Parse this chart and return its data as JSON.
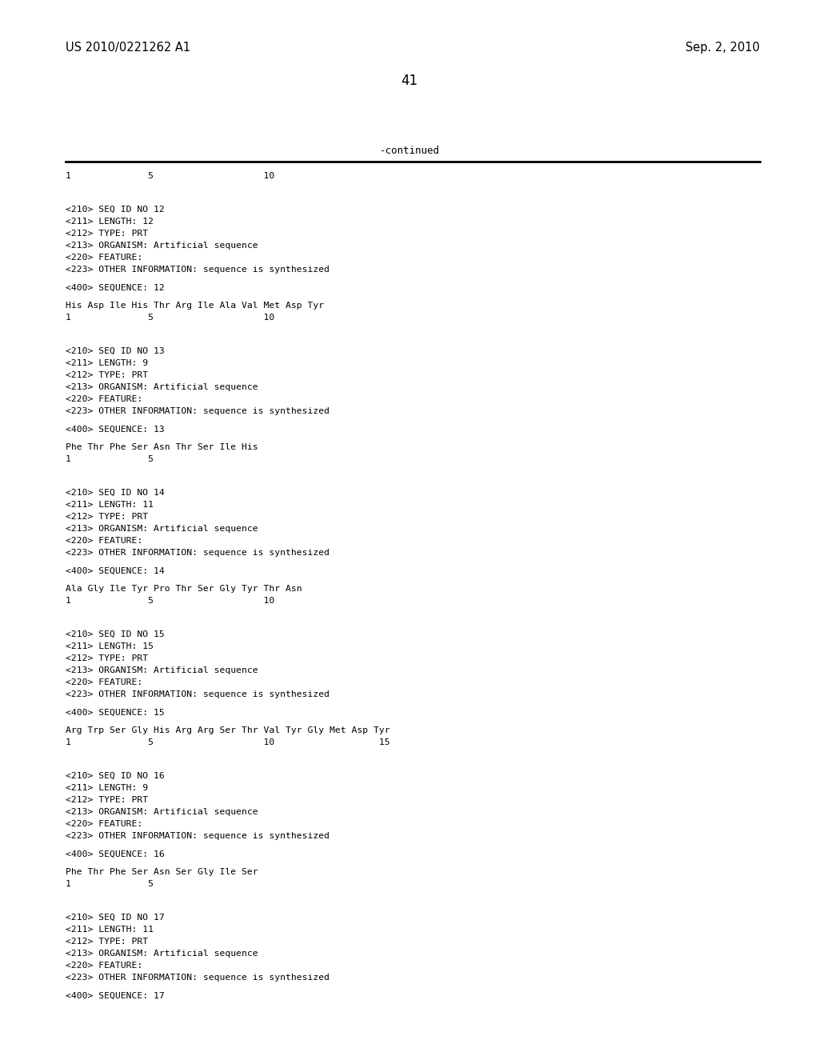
{
  "header_left": "US 2010/0221262 A1",
  "header_right": "Sep. 2, 2010",
  "page_number": "41",
  "continued_label": "-continued",
  "background_color": "#ffffff",
  "text_color": "#000000",
  "mono_font": "DejaVu Sans Mono",
  "header_font": "DejaVu Sans",
  "ruler_line1": "1              5                    10",
  "content_blocks": [
    {
      "type": "seq_block",
      "lines": [
        "<210> SEQ ID NO 12",
        "<211> LENGTH: 12",
        "<212> TYPE: PRT",
        "<213> ORGANISM: Artificial sequence",
        "<220> FEATURE:",
        "<223> OTHER INFORMATION: sequence is synthesized"
      ],
      "seq_label": "<400> SEQUENCE: 12",
      "seq_data": "His Asp Ile His Thr Arg Ile Ala Val Met Asp Tyr",
      "seq_ruler": "1              5                    10"
    },
    {
      "type": "seq_block",
      "lines": [
        "<210> SEQ ID NO 13",
        "<211> LENGTH: 9",
        "<212> TYPE: PRT",
        "<213> ORGANISM: Artificial sequence",
        "<220> FEATURE:",
        "<223> OTHER INFORMATION: sequence is synthesized"
      ],
      "seq_label": "<400> SEQUENCE: 13",
      "seq_data": "Phe Thr Phe Ser Asn Thr Ser Ile His",
      "seq_ruler": "1              5"
    },
    {
      "type": "seq_block",
      "lines": [
        "<210> SEQ ID NO 14",
        "<211> LENGTH: 11",
        "<212> TYPE: PRT",
        "<213> ORGANISM: Artificial sequence",
        "<220> FEATURE:",
        "<223> OTHER INFORMATION: sequence is synthesized"
      ],
      "seq_label": "<400> SEQUENCE: 14",
      "seq_data": "Ala Gly Ile Tyr Pro Thr Ser Gly Tyr Thr Asn",
      "seq_ruler": "1              5                    10"
    },
    {
      "type": "seq_block",
      "lines": [
        "<210> SEQ ID NO 15",
        "<211> LENGTH: 15",
        "<212> TYPE: PRT",
        "<213> ORGANISM: Artificial sequence",
        "<220> FEATURE:",
        "<223> OTHER INFORMATION: sequence is synthesized"
      ],
      "seq_label": "<400> SEQUENCE: 15",
      "seq_data": "Arg Trp Ser Gly His Arg Arg Ser Thr Val Tyr Gly Met Asp Tyr",
      "seq_ruler": "1              5                    10                   15"
    },
    {
      "type": "seq_block",
      "lines": [
        "<210> SEQ ID NO 16",
        "<211> LENGTH: 9",
        "<212> TYPE: PRT",
        "<213> ORGANISM: Artificial sequence",
        "<220> FEATURE:",
        "<223> OTHER INFORMATION: sequence is synthesized"
      ],
      "seq_label": "<400> SEQUENCE: 16",
      "seq_data": "Phe Thr Phe Ser Asn Ser Gly Ile Ser",
      "seq_ruler": "1              5"
    },
    {
      "type": "seq_block",
      "lines": [
        "<210> SEQ ID NO 17",
        "<211> LENGTH: 11",
        "<212> TYPE: PRT",
        "<213> ORGANISM: Artificial sequence",
        "<220> FEATURE:",
        "<223> OTHER INFORMATION: sequence is synthesized"
      ],
      "seq_label": "<400> SEQUENCE: 17",
      "seq_data": "",
      "seq_ruler": ""
    }
  ]
}
